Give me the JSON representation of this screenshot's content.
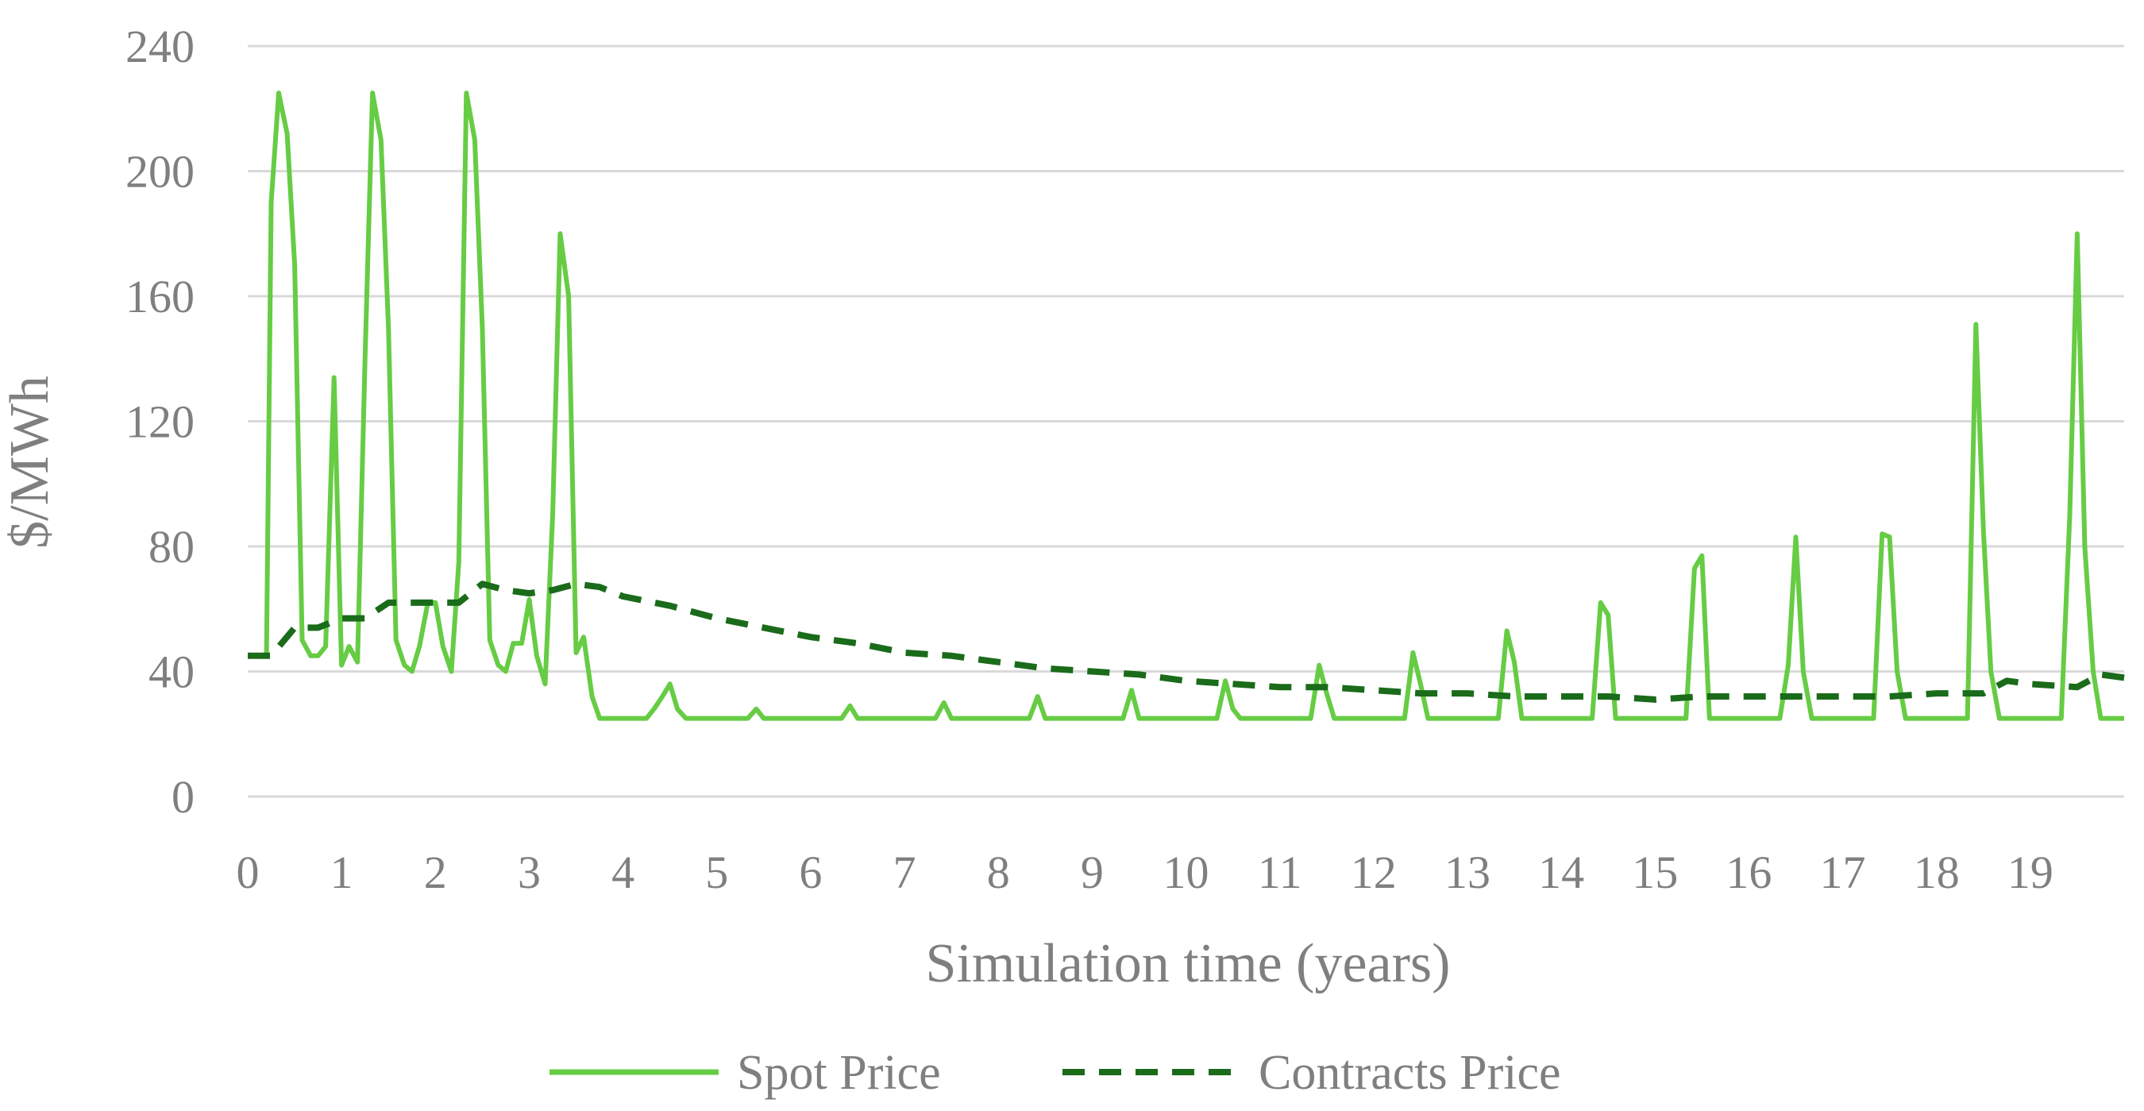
{
  "chart_data": {
    "type": "line",
    "xlabel": "Simulation time (years)",
    "ylabel": "$/MWh",
    "xlim": [
      0,
      20
    ],
    "ylim": [
      0,
      240
    ],
    "x_ticks": [
      0,
      1,
      2,
      3,
      4,
      5,
      6,
      7,
      8,
      9,
      10,
      11,
      12,
      13,
      14,
      15,
      16,
      17,
      18,
      19
    ],
    "y_ticks": [
      0,
      40,
      80,
      120,
      160,
      200,
      240
    ],
    "grid": "horizontal",
    "legend_position": "bottom",
    "colors": {
      "spot": "#66cc44",
      "contracts": "#1a6b1a",
      "grid": "#d9d9d9",
      "text": "#7f7f7f"
    },
    "series": [
      {
        "name": "Spot Price",
        "style": "solid",
        "points": [
          [
            0,
            45
          ],
          [
            0.2,
            45
          ],
          [
            0.25,
            190
          ],
          [
            0.33,
            225
          ],
          [
            0.42,
            212
          ],
          [
            0.5,
            170
          ],
          [
            0.58,
            50
          ],
          [
            0.67,
            45
          ],
          [
            0.75,
            45
          ],
          [
            0.83,
            48
          ],
          [
            0.92,
            134
          ],
          [
            1.0,
            42
          ],
          [
            1.08,
            48
          ],
          [
            1.17,
            43
          ],
          [
            1.25,
            140
          ],
          [
            1.33,
            225
          ],
          [
            1.42,
            210
          ],
          [
            1.5,
            150
          ],
          [
            1.58,
            50
          ],
          [
            1.67,
            42
          ],
          [
            1.75,
            40
          ],
          [
            1.83,
            48
          ],
          [
            1.92,
            62
          ],
          [
            2.0,
            62
          ],
          [
            2.08,
            48
          ],
          [
            2.17,
            40
          ],
          [
            2.25,
            75
          ],
          [
            2.33,
            225
          ],
          [
            2.42,
            210
          ],
          [
            2.5,
            150
          ],
          [
            2.58,
            50
          ],
          [
            2.67,
            42
          ],
          [
            2.75,
            40
          ],
          [
            2.83,
            49
          ],
          [
            2.92,
            49
          ],
          [
            3.0,
            63
          ],
          [
            3.08,
            45
          ],
          [
            3.17,
            36
          ],
          [
            3.25,
            90
          ],
          [
            3.33,
            180
          ],
          [
            3.42,
            160
          ],
          [
            3.5,
            46
          ],
          [
            3.58,
            51
          ],
          [
            3.67,
            32
          ],
          [
            3.75,
            25
          ],
          [
            4.0,
            25
          ],
          [
            4.25,
            25
          ],
          [
            4.33,
            28
          ],
          [
            4.42,
            32
          ],
          [
            4.5,
            36
          ],
          [
            4.58,
            28
          ],
          [
            4.67,
            25
          ],
          [
            5.33,
            25
          ],
          [
            5.42,
            28
          ],
          [
            5.5,
            25
          ],
          [
            6.33,
            25
          ],
          [
            6.42,
            29
          ],
          [
            6.5,
            25
          ],
          [
            7.33,
            25
          ],
          [
            7.42,
            30
          ],
          [
            7.5,
            25
          ],
          [
            8.33,
            25
          ],
          [
            8.42,
            32
          ],
          [
            8.5,
            25
          ],
          [
            9.33,
            25
          ],
          [
            9.42,
            34
          ],
          [
            9.5,
            25
          ],
          [
            10.33,
            25
          ],
          [
            10.42,
            37
          ],
          [
            10.5,
            28
          ],
          [
            10.58,
            25
          ],
          [
            11.33,
            25
          ],
          [
            11.42,
            42
          ],
          [
            11.5,
            33
          ],
          [
            11.58,
            25
          ],
          [
            12.33,
            25
          ],
          [
            12.42,
            46
          ],
          [
            12.5,
            36
          ],
          [
            12.58,
            25
          ],
          [
            13.33,
            25
          ],
          [
            13.42,
            53
          ],
          [
            13.5,
            43
          ],
          [
            13.58,
            25
          ],
          [
            14.33,
            25
          ],
          [
            14.42,
            62
          ],
          [
            14.5,
            58
          ],
          [
            14.58,
            25
          ],
          [
            15.33,
            25
          ],
          [
            15.42,
            73
          ],
          [
            15.5,
            77
          ],
          [
            15.58,
            25
          ],
          [
            16.33,
            25
          ],
          [
            16.42,
            42
          ],
          [
            16.5,
            83
          ],
          [
            16.58,
            40
          ],
          [
            16.67,
            25
          ],
          [
            17.33,
            25
          ],
          [
            17.42,
            84
          ],
          [
            17.5,
            83
          ],
          [
            17.58,
            40
          ],
          [
            17.67,
            25
          ],
          [
            18.33,
            25
          ],
          [
            18.42,
            151
          ],
          [
            18.5,
            85
          ],
          [
            18.58,
            40
          ],
          [
            18.67,
            25
          ],
          [
            19.33,
            25
          ],
          [
            19.42,
            90
          ],
          [
            19.5,
            180
          ],
          [
            19.58,
            80
          ],
          [
            19.67,
            40
          ],
          [
            19.75,
            25
          ],
          [
            20,
            25
          ]
        ]
      },
      {
        "name": "Contracts Price",
        "style": "dashed",
        "points": [
          [
            0,
            45
          ],
          [
            0.25,
            45
          ],
          [
            0.5,
            54
          ],
          [
            0.75,
            54
          ],
          [
            1.0,
            57
          ],
          [
            1.25,
            57
          ],
          [
            1.5,
            62
          ],
          [
            1.75,
            62
          ],
          [
            2.0,
            62
          ],
          [
            2.25,
            62
          ],
          [
            2.5,
            68
          ],
          [
            2.75,
            66
          ],
          [
            3.0,
            65
          ],
          [
            3.25,
            66
          ],
          [
            3.5,
            68
          ],
          [
            3.75,
            67
          ],
          [
            4.0,
            64
          ],
          [
            4.5,
            61
          ],
          [
            5.0,
            57
          ],
          [
            5.5,
            54
          ],
          [
            6.0,
            51
          ],
          [
            6.5,
            49
          ],
          [
            7.0,
            46
          ],
          [
            7.5,
            45
          ],
          [
            8.0,
            43
          ],
          [
            8.5,
            41
          ],
          [
            9.0,
            40
          ],
          [
            9.5,
            39
          ],
          [
            10.0,
            37
          ],
          [
            10.5,
            36
          ],
          [
            11.0,
            35
          ],
          [
            11.5,
            35
          ],
          [
            12.0,
            34
          ],
          [
            12.5,
            33
          ],
          [
            13.0,
            33
          ],
          [
            13.5,
            32
          ],
          [
            14.0,
            32
          ],
          [
            14.5,
            32
          ],
          [
            15.0,
            31
          ],
          [
            15.5,
            32
          ],
          [
            16.0,
            32
          ],
          [
            16.5,
            32
          ],
          [
            17.0,
            32
          ],
          [
            17.5,
            32
          ],
          [
            18.0,
            33
          ],
          [
            18.5,
            33
          ],
          [
            18.75,
            37
          ],
          [
            19.0,
            36
          ],
          [
            19.5,
            35
          ],
          [
            19.75,
            39
          ],
          [
            20,
            38
          ]
        ]
      }
    ]
  }
}
